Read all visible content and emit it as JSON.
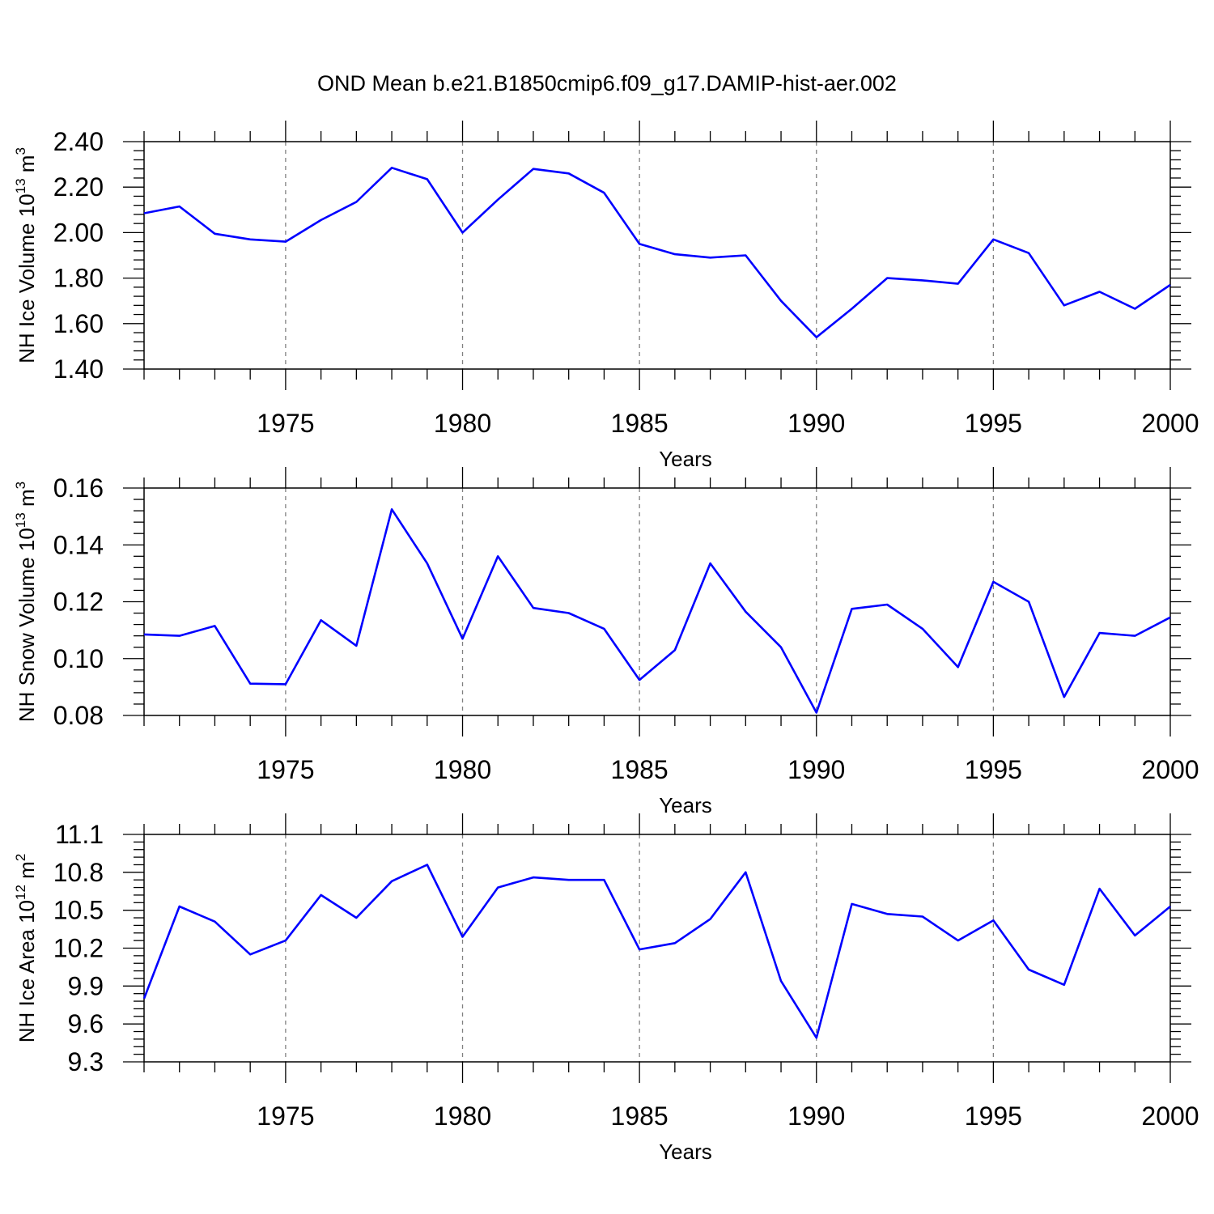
{
  "title": "OND Mean b.e21.B1850cmip6.f09_g17.DAMIP-hist-aer.002",
  "colors": {
    "series": "#0000ff",
    "axis": "#000000",
    "grid": "#808080"
  },
  "chart_data": [
    {
      "type": "line",
      "ylabel": {
        "main": "NH Ice Volume 10",
        "exp": "13",
        "unit": " m",
        "unit_exp": "3"
      },
      "xlabel": "Years",
      "xlim": [
        1971,
        2000
      ],
      "ylim": [
        1.4,
        2.4
      ],
      "xticks": [
        1975,
        1980,
        1985,
        1990,
        1995,
        2000
      ],
      "yticks": [
        "1.40",
        "1.60",
        "1.80",
        "2.00",
        "2.20",
        "2.40"
      ],
      "grid": "vertical-dashed",
      "x": [
        1971,
        1972,
        1973,
        1974,
        1975,
        1976,
        1977,
        1978,
        1979,
        1980,
        1981,
        1982,
        1983,
        1984,
        1985,
        1986,
        1987,
        1988,
        1989,
        1990,
        1991,
        1992,
        1993,
        1994,
        1995,
        1996,
        1997,
        1998,
        1999,
        2000
      ],
      "values": [
        2.085,
        2.115,
        1.995,
        1.97,
        1.96,
        2.055,
        2.135,
        2.285,
        2.235,
        2.0,
        2.145,
        2.28,
        2.26,
        2.175,
        1.95,
        1.905,
        1.89,
        1.9,
        1.7,
        1.54,
        1.665,
        1.8,
        1.79,
        1.775,
        1.97,
        1.91,
        1.68,
        1.74,
        1.665,
        1.77
      ]
    },
    {
      "type": "line",
      "ylabel": {
        "main": "NH Snow Volume 10",
        "exp": "13",
        "unit": " m",
        "unit_exp": "3"
      },
      "xlabel": "Years",
      "xlim": [
        1971,
        2000
      ],
      "ylim": [
        0.08,
        0.16
      ],
      "xticks": [
        1975,
        1980,
        1985,
        1990,
        1995,
        2000
      ],
      "yticks": [
        "0.08",
        "0.10",
        "0.12",
        "0.14",
        "0.16"
      ],
      "grid": "vertical-dashed",
      "x": [
        1971,
        1972,
        1973,
        1974,
        1975,
        1976,
        1977,
        1978,
        1979,
        1980,
        1981,
        1982,
        1983,
        1984,
        1985,
        1986,
        1987,
        1988,
        1989,
        1990,
        1991,
        1992,
        1993,
        1994,
        1995,
        1996,
        1997,
        1998,
        1999,
        2000
      ],
      "values": [
        0.1085,
        0.108,
        0.1115,
        0.0912,
        0.091,
        0.1135,
        0.1045,
        0.1525,
        0.1335,
        0.107,
        0.136,
        0.1178,
        0.116,
        0.1105,
        0.0925,
        0.103,
        0.1335,
        0.1165,
        0.104,
        0.081,
        0.1175,
        0.119,
        0.1105,
        0.097,
        0.127,
        0.12,
        0.0865,
        0.109,
        0.108,
        0.1145
      ]
    },
    {
      "type": "line",
      "ylabel": {
        "main": "NH Ice Area 10",
        "exp": "12",
        "unit": " m",
        "unit_exp": "2"
      },
      "xlabel": "Years",
      "xlim": [
        1971,
        2000
      ],
      "ylim": [
        9.3,
        11.1
      ],
      "xticks": [
        1975,
        1980,
        1985,
        1990,
        1995,
        2000
      ],
      "yticks": [
        "9.3",
        "9.6",
        "9.9",
        "10.2",
        "10.5",
        "10.8",
        "11.1"
      ],
      "grid": "vertical-dashed",
      "x": [
        1971,
        1972,
        1973,
        1974,
        1975,
        1976,
        1977,
        1978,
        1979,
        1980,
        1981,
        1982,
        1983,
        1984,
        1985,
        1986,
        1987,
        1988,
        1989,
        1990,
        1991,
        1992,
        1993,
        1994,
        1995,
        1996,
        1997,
        1998,
        1999,
        2000
      ],
      "values": [
        9.8,
        10.53,
        10.41,
        10.15,
        10.26,
        10.62,
        10.44,
        10.73,
        10.86,
        10.29,
        10.68,
        10.76,
        10.74,
        10.74,
        10.19,
        10.24,
        10.43,
        10.8,
        9.94,
        9.49,
        10.55,
        10.47,
        10.45,
        10.26,
        10.42,
        10.03,
        9.91,
        10.67,
        10.3,
        10.53
      ]
    }
  ]
}
